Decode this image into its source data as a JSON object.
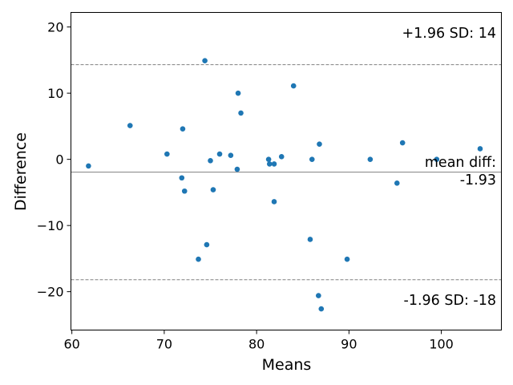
{
  "chart_data": {
    "type": "scatter",
    "title": "",
    "xlabel": "Means",
    "ylabel": "Difference",
    "xlim": [
      59.9,
      106.5
    ],
    "ylim": [
      -25.8,
      22.2
    ],
    "xticks": [
      60,
      70,
      80,
      90,
      100
    ],
    "yticks": [
      -20,
      -10,
      0,
      10,
      20
    ],
    "xtick_labels": [
      "60",
      "70",
      "80",
      "90",
      "100"
    ],
    "ytick_labels": [
      "−20",
      "−10",
      "0",
      "10",
      "20"
    ],
    "grid": false,
    "point_color": "#1f77b4",
    "mean_line_color": "#808080",
    "sd_line_color": "#808080",
    "mean_diff": -1.93,
    "upper_loa": 14.3,
    "lower_loa": -18.2,
    "annotations": {
      "upper": "+1.96 SD: 14",
      "mean_line1": "mean diff:",
      "mean_line2": "-1.93",
      "lower": "-1.96 SD: -18"
    },
    "points": [
      {
        "x": 61.8,
        "y": -1.0
      },
      {
        "x": 66.3,
        "y": 5.1
      },
      {
        "x": 70.3,
        "y": 0.8
      },
      {
        "x": 71.9,
        "y": -2.8
      },
      {
        "x": 72.0,
        "y": 4.6
      },
      {
        "x": 72.2,
        "y": -4.8
      },
      {
        "x": 73.7,
        "y": -15.1
      },
      {
        "x": 74.4,
        "y": 14.9
      },
      {
        "x": 74.6,
        "y": -12.9
      },
      {
        "x": 75.0,
        "y": -0.2
      },
      {
        "x": 75.3,
        "y": -4.6
      },
      {
        "x": 76.0,
        "y": 0.8
      },
      {
        "x": 77.2,
        "y": 0.6
      },
      {
        "x": 77.9,
        "y": -1.5
      },
      {
        "x": 78.0,
        "y": 10.0
      },
      {
        "x": 78.3,
        "y": 7.0
      },
      {
        "x": 81.3,
        "y": 0.0
      },
      {
        "x": 81.4,
        "y": -0.7
      },
      {
        "x": 81.9,
        "y": -0.7
      },
      {
        "x": 81.9,
        "y": -6.4
      },
      {
        "x": 82.7,
        "y": 0.4
      },
      {
        "x": 84.0,
        "y": 11.1
      },
      {
        "x": 85.8,
        "y": -12.1
      },
      {
        "x": 86.0,
        "y": 0.0
      },
      {
        "x": 86.7,
        "y": -20.6
      },
      {
        "x": 86.8,
        "y": 2.3
      },
      {
        "x": 87.0,
        "y": -22.6
      },
      {
        "x": 89.8,
        "y": -15.1
      },
      {
        "x": 92.3,
        "y": 0.0
      },
      {
        "x": 95.2,
        "y": -3.6
      },
      {
        "x": 95.8,
        "y": 2.5
      },
      {
        "x": 99.5,
        "y": 0.0
      },
      {
        "x": 104.2,
        "y": 1.6
      }
    ]
  }
}
